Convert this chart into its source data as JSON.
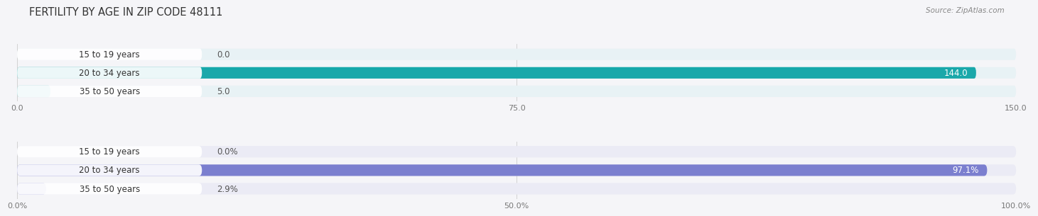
{
  "title": "FERTILITY BY AGE IN ZIP CODE 48111",
  "source": "Source: ZipAtlas.com",
  "top_chart": {
    "categories": [
      "15 to 19 years",
      "20 to 34 years",
      "35 to 50 years"
    ],
    "values": [
      0.0,
      144.0,
      5.0
    ],
    "value_labels": [
      "0.0",
      "144.0",
      "5.0"
    ],
    "xlim": [
      0,
      150.0
    ],
    "xticks": [
      0.0,
      75.0,
      150.0
    ],
    "xtick_labels": [
      "0.0",
      "75.0",
      "150.0"
    ],
    "bar_colors": [
      "#74cdd0",
      "#1aa8aa",
      "#74cdd0"
    ],
    "bar_bg_color": "#e8f2f5",
    "label_inside_color": "#ffffff",
    "label_outside_color": "#555555"
  },
  "bottom_chart": {
    "categories": [
      "15 to 19 years",
      "20 to 34 years",
      "35 to 50 years"
    ],
    "values": [
      0.0,
      97.1,
      2.9
    ],
    "value_labels": [
      "0.0%",
      "97.1%",
      "2.9%"
    ],
    "xlim": [
      0,
      100.0
    ],
    "xticks": [
      0.0,
      50.0,
      100.0
    ],
    "xtick_labels": [
      "0.0%",
      "50.0%",
      "100.0%"
    ],
    "bar_colors": [
      "#b0b0e0",
      "#7b7fcf",
      "#b0b0e0"
    ],
    "bar_bg_color": "#ebebf5",
    "label_inside_color": "#ffffff",
    "label_outside_color": "#555555"
  },
  "bg_color": "#f5f5f8",
  "title_fontsize": 10.5,
  "axis_fontsize": 8,
  "label_fontsize": 8.5,
  "category_fontsize": 8.5
}
